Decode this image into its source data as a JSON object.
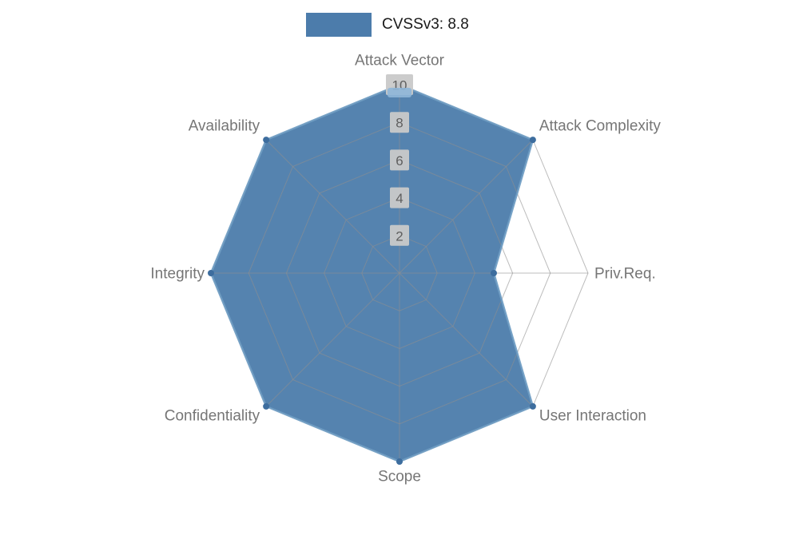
{
  "page": {
    "background": "#ffffff"
  },
  "chart_data": {
    "type": "radar",
    "title": "",
    "legend": {
      "label": "CVSSv3: 8.8",
      "position": "top-center"
    },
    "categories": [
      "Attack Vector",
      "Attack Complexity",
      "Priv.Req.",
      "User Interaction",
      "Scope",
      "Confidentiality",
      "Integrity",
      "Availability"
    ],
    "series": [
      {
        "name": "CVSSv3: 8.8",
        "values": [
          10,
          10,
          5,
          10,
          10,
          10,
          10,
          10
        ],
        "fill_color": "#4c7cab",
        "line_color": "#6e9cc3",
        "marker_color": "#3d6d9e",
        "tip_marker_color": "#8fb6d8"
      }
    ],
    "radial_ticks": [
      2,
      4,
      6,
      8,
      10
    ],
    "rlim": [
      0,
      10
    ],
    "grid": true,
    "grid_color": "#8f8f8f",
    "tick_label_bg": "#c9c9c9",
    "tick_label_color": "#5f5f5f",
    "axis_label_color": "#767676"
  }
}
